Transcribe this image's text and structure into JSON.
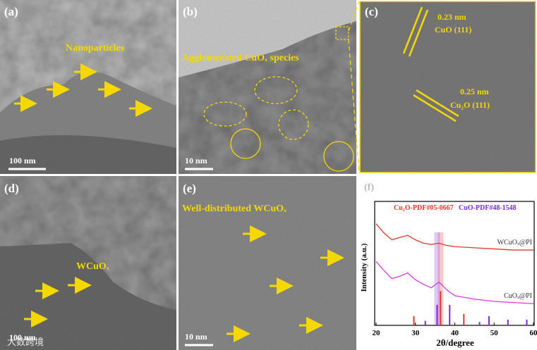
{
  "panels": [
    {
      "label": "(a)",
      "annotation": "Nanoparticles",
      "scale_bar": "100 nm"
    },
    {
      "label": "(b)",
      "annotation": "Agglomerated CuOₓ species",
      "scale_bar": "10 nm"
    },
    {
      "label": "(c)",
      "annotations": [
        "0.23 nm",
        "CuO (111)",
        "0.25 nm",
        "Cu₂O (111)"
      ]
    },
    {
      "label": "(d)",
      "annotation": "WCuOₓ",
      "scale_bar": "100 nm"
    },
    {
      "label": "(e)",
      "annotation": "Well-distributed WCuOₓ",
      "scale_bar": "10 nm"
    },
    {
      "label": "(f)"
    }
  ],
  "watermark": "大数跨境",
  "chart_data": {
    "type": "line",
    "x_label": "2θ/degree",
    "y_label": "Intensity (a.u.)",
    "x": [
      20,
      22,
      24,
      26,
      28,
      30,
      32,
      34,
      36,
      38,
      40,
      45,
      50,
      55,
      60
    ],
    "xlim": [
      20,
      60
    ],
    "xticks": [
      20,
      30,
      40,
      50,
      60
    ],
    "ylim": [
      0,
      100
    ],
    "series": [
      {
        "name": "WCuOₓ@PI",
        "color": "#e8352a",
        "values": [
          89,
          81,
          75,
          77,
          79,
          75,
          72,
          71,
          72,
          70,
          69,
          68,
          67,
          66,
          66
        ]
      },
      {
        "name": "CuOₓ@PI",
        "color": "#d63be0",
        "values": [
          56,
          48,
          41,
          43,
          46,
          40,
          36,
          33,
          38,
          31,
          26,
          23,
          21,
          20,
          19
        ]
      }
    ],
    "references": [
      {
        "name": "Cu₂O-PDF#05-0667",
        "color": "#e8352a",
        "positions": [
          29.6,
          36.4,
          42.3
        ],
        "intensities": [
          8,
          30,
          10
        ]
      },
      {
        "name": "CuO-PDF#48-1548",
        "color": "#7a2be0",
        "positions": [
          32.5,
          35.5,
          38.7,
          46.3,
          48.7,
          53.5,
          58.3
        ],
        "intensities": [
          4,
          18,
          18,
          3,
          8,
          5,
          5
        ]
      }
    ]
  }
}
